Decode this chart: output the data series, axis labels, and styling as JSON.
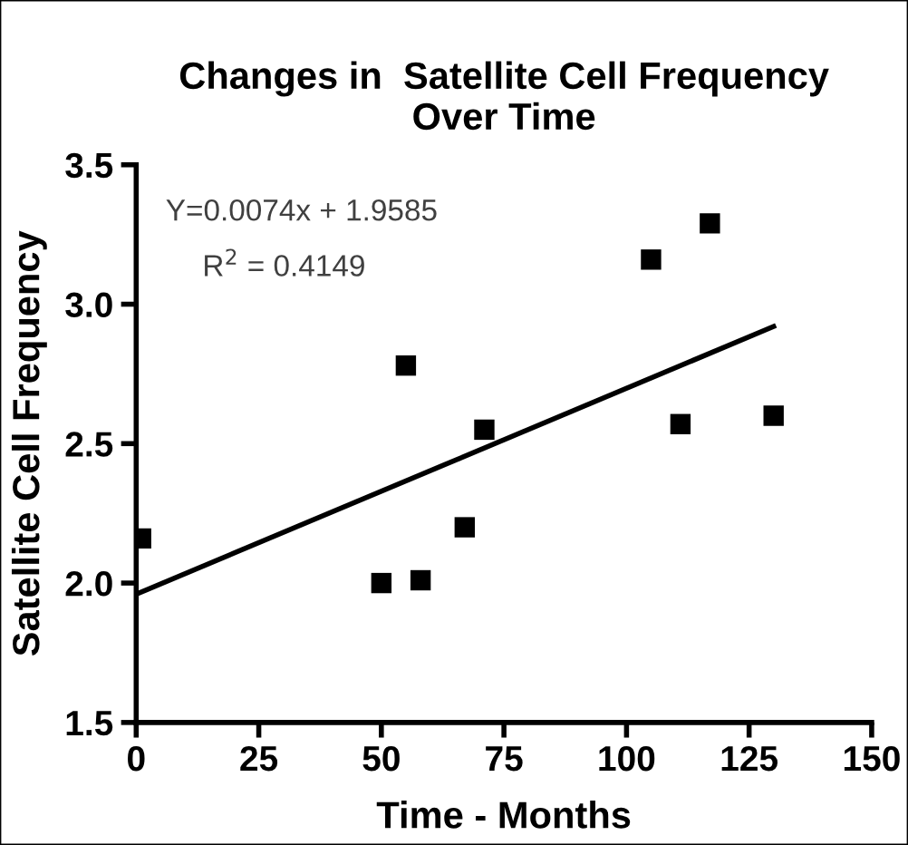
{
  "chart_data": {
    "type": "scatter",
    "title": "Changes in  Satellite Cell Frequency\nOver Time",
    "xlabel": "Time - Months",
    "ylabel": "Satellite Cell Frequency",
    "annotations": [
      "Y=0.0074x + 1.9585",
      "R$^{2}$ = 0.4149"
    ],
    "series": [
      {
        "color": "#000000",
        "marker": "square",
        "x": [
          1,
          50,
          55,
          58,
          67,
          71,
          105,
          111,
          117,
          130
        ],
        "values": [
          2.16,
          2.0,
          2.78,
          2.01,
          2.2,
          2.55,
          3.16,
          2.57,
          3.29,
          2.6
        ]
      },
      {
        "type": "line",
        "color": "#000000",
        "line_style": "solid",
        "x": [
          0,
          130
        ],
        "values": [
          1.96,
          2.92
        ]
      }
    ],
    "xlim": [
      0,
      150
    ],
    "xticks": [
      0,
      25,
      50,
      75,
      100,
      125,
      150
    ],
    "ylim": [
      1.5,
      3.5
    ],
    "yticks": [
      1.5,
      {
        "value": 2,
        "label": "2.0"
      },
      2.5,
      {
        "value": 3,
        "label": "3.0"
      },
      3.5
    ],
    "grid": false,
    "legend": false
  }
}
